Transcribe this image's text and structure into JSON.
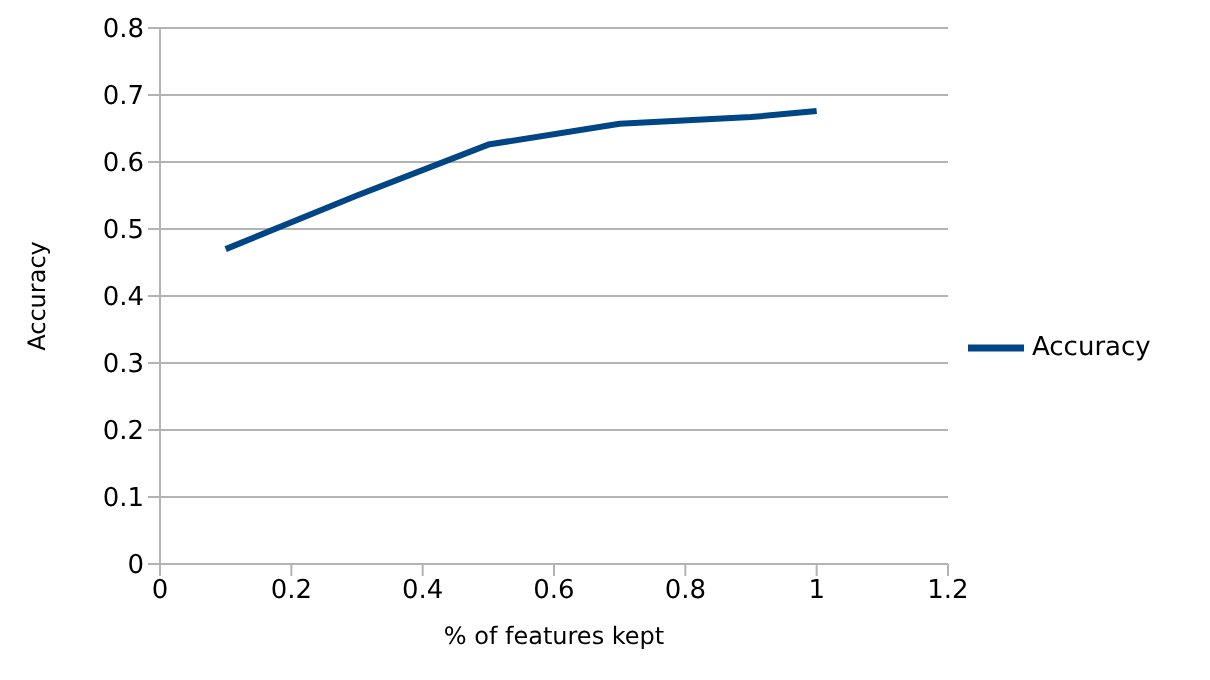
{
  "chart_data": {
    "type": "line",
    "xlabel": "% of features kept",
    "ylabel": "Accuracy",
    "x": [
      0.1,
      0.3,
      0.5,
      0.7,
      0.9,
      1.0
    ],
    "series": [
      {
        "name": "Accuracy",
        "color": "#004586",
        "values": [
          0.47,
          0.55,
          0.626,
          0.657,
          0.667,
          0.676
        ]
      }
    ],
    "xlim": [
      0,
      1.2
    ],
    "xticks": [
      0,
      0.2,
      0.4,
      0.6,
      0.8,
      1,
      1.2
    ],
    "ylim": [
      0,
      0.8
    ],
    "yticks": [
      0,
      0.1,
      0.2,
      0.3,
      0.4,
      0.5,
      0.6,
      0.7,
      0.8
    ],
    "grid": "y",
    "legend": "right",
    "marker": "none",
    "line_style": "solid"
  }
}
